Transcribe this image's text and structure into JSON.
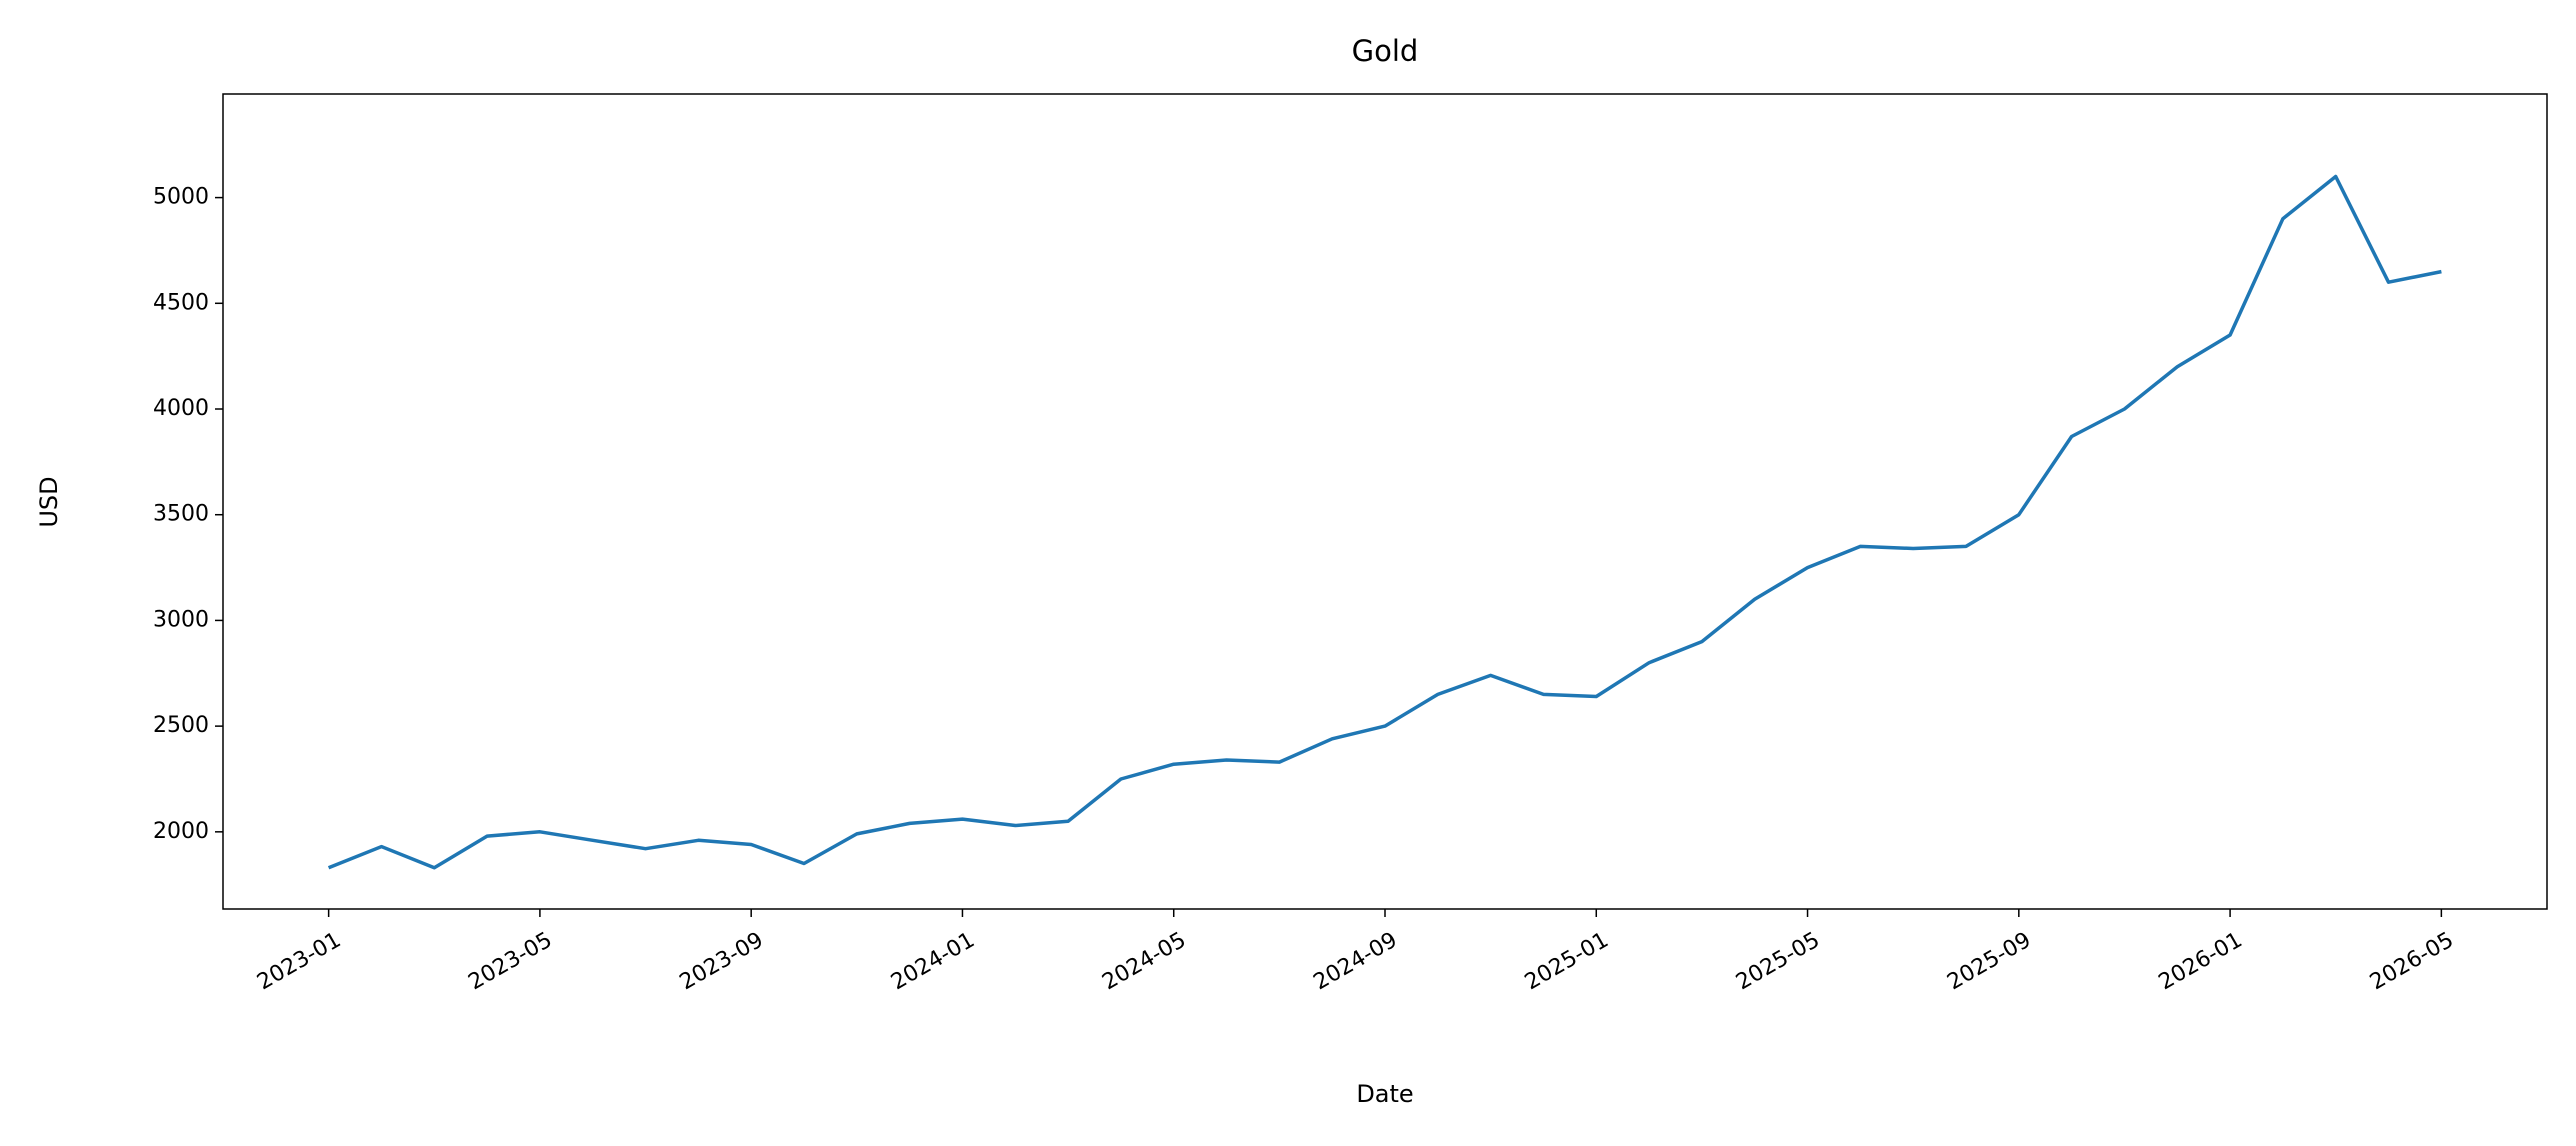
{
  "chart_data": {
    "type": "line",
    "title": "Gold",
    "x_label": "Date",
    "y_label": "USD",
    "x": [
      "2023-01",
      "2023-02",
      "2023-03",
      "2023-04",
      "2023-05",
      "2023-06",
      "2023-07",
      "2023-08",
      "2023-09",
      "2023-10",
      "2023-11",
      "2023-12",
      "2024-01",
      "2024-02",
      "2024-03",
      "2024-04",
      "2024-05",
      "2024-06",
      "2024-07",
      "2024-08",
      "2024-09",
      "2024-10",
      "2024-11",
      "2024-12",
      "2025-01",
      "2025-02",
      "2025-03",
      "2025-04",
      "2025-05",
      "2025-06",
      "2025-07",
      "2025-08",
      "2025-09",
      "2025-10",
      "2025-11",
      "2025-12",
      "2026-01",
      "2026-02",
      "2026-03",
      "2026-04",
      "2026-05"
    ],
    "series": [
      {
        "name": "Gold",
        "color": "#1f77b4",
        "values": [
          1830,
          1930,
          1830,
          1980,
          2000,
          1960,
          1920,
          1960,
          1940,
          1850,
          1990,
          2040,
          2060,
          2030,
          2050,
          2250,
          2320,
          2340,
          2330,
          2440,
          2500,
          2650,
          2740,
          2650,
          2640,
          2800,
          2900,
          3100,
          3250,
          3350,
          3340,
          3350,
          3500,
          3870,
          4000,
          4200,
          4350,
          4900,
          5100,
          4600,
          4650
        ]
      }
    ],
    "xlim": [
      "2022-11",
      "2026-07"
    ],
    "xticks": [
      "2023-01",
      "2023-05",
      "2023-09",
      "2024-01",
      "2024-05",
      "2024-09",
      "2025-01",
      "2025-05",
      "2025-09",
      "2026-01",
      "2026-05"
    ],
    "ylim": [
      1635,
      5490
    ],
    "yticks": [
      2000,
      2500,
      3000,
      3500,
      4000,
      4500,
      5000
    ],
    "grid": false
  }
}
